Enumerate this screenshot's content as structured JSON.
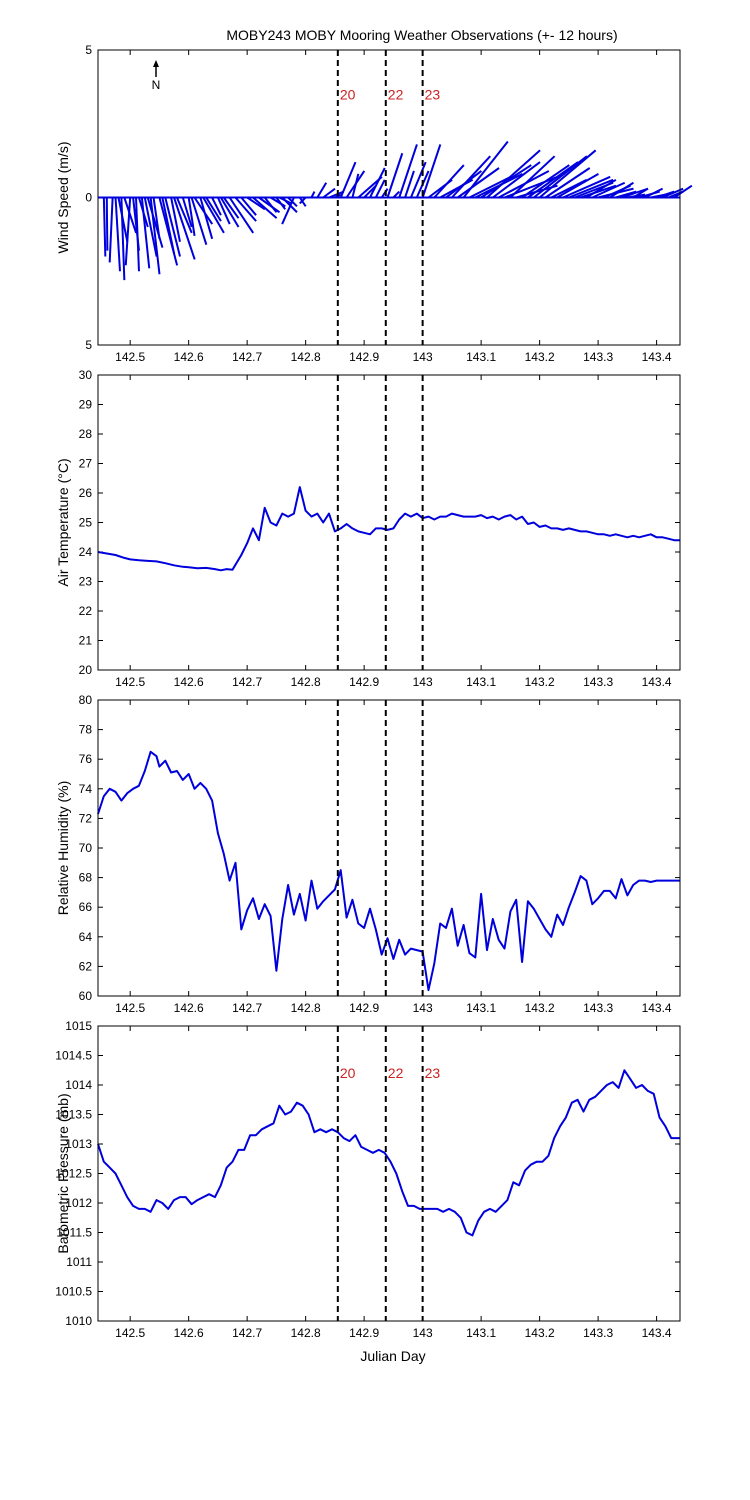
{
  "figure": {
    "title": "MOBY243 MOBY Mooring Weather Observations (+- 12 hours)",
    "xlabel": "Julian Day",
    "north_label": "N",
    "series_color": "#0000dd",
    "marker_color": "#cc2222"
  },
  "markers": [
    {
      "x": 142.855,
      "label": "20"
    },
    {
      "x": 142.937,
      "label": "22"
    },
    {
      "x": 143.0,
      "label": "23"
    }
  ],
  "x_ticks": [
    "142.5",
    "142.6",
    "142.7",
    "142.8",
    "142.9",
    "143",
    "143.1",
    "143.2",
    "143.3",
    "143.4"
  ],
  "chart_data": [
    {
      "type": "line",
      "name": "wind",
      "ylabel": "Wind Speed (m/s)",
      "xlim": [
        142.445,
        143.44
      ],
      "ylim": [
        -5,
        5
      ],
      "y_ticks": [
        "5",
        "0",
        "5"
      ],
      "show_marker_labels": true,
      "marker_label_y": 3.5,
      "x": [
        142.455,
        142.46,
        142.47,
        142.475,
        142.48,
        142.485,
        142.49,
        142.5,
        142.505,
        142.51,
        142.515,
        142.52,
        142.525,
        142.53,
        142.535,
        142.54,
        142.55,
        142.555,
        142.56,
        142.57,
        142.575,
        142.58,
        142.59,
        142.6,
        142.605,
        142.61,
        142.62,
        142.625,
        142.63,
        142.64,
        142.65,
        142.655,
        142.66,
        142.67,
        142.68,
        142.69,
        142.7,
        142.71,
        142.72,
        142.73,
        142.74,
        142.75,
        142.755,
        142.76,
        142.77,
        142.78,
        142.79,
        142.8,
        142.81,
        142.82,
        142.83,
        142.84,
        142.85,
        142.86,
        142.87,
        142.88,
        142.89,
        142.9,
        142.91,
        142.92,
        142.93,
        142.94,
        142.95,
        142.96,
        142.97,
        142.98,
        142.99,
        143.0,
        143.01,
        143.02,
        143.03,
        143.04,
        143.05,
        143.06,
        143.07,
        143.08,
        143.09,
        143.1,
        143.11,
        143.12,
        143.13,
        143.14,
        143.15,
        143.16,
        143.17,
        143.18,
        143.19,
        143.2,
        143.21,
        143.22,
        143.23,
        143.24,
        143.25,
        143.26,
        143.27,
        143.28,
        143.29,
        143.3,
        143.31,
        143.32,
        143.33,
        143.34,
        143.35,
        143.36,
        143.37,
        143.38,
        143.39,
        143.4,
        143.41,
        143.42,
        143.43
      ],
      "u": [
        0.05,
        0.02,
        -0.1,
        0.15,
        0.3,
        0.1,
        0.4,
        -0.15,
        0.2,
        0.1,
        0.3,
        0.25,
        0.4,
        0.5,
        0.3,
        0.2,
        0.6,
        0.4,
        0.5,
        0.3,
        0.7,
        0.5,
        0.3,
        0.2,
        0.5,
        0.6,
        0.4,
        0.7,
        0.5,
        0.3,
        0.4,
        0.6,
        0.5,
        0.8,
        0.7,
        0.5,
        0.6,
        0.8,
        0.7,
        0.4,
        0.5,
        0.3,
        0.4,
        0.5,
        0.3,
        -0.4,
        0.2,
        -0.2,
        0.1,
        0.3,
        0.4,
        0.5,
        0.2,
        0.5,
        0.6,
        0.2,
        0.8,
        0.4,
        0.5,
        0.3,
        0.2,
        0.5,
        0.2,
        0.6,
        0.3,
        0.5,
        0.4,
        0.6,
        0.8,
        1.0,
        1.1,
        1.2,
        1.3,
        1.4,
        1.5,
        1.4,
        1.6,
        1.7,
        1.8,
        1.6,
        1.7,
        1.8,
        1.5,
        1.4,
        1.6,
        1.7,
        1.8,
        1.9,
        1.5,
        1.2,
        1.4,
        1.6,
        1.5,
        1.3,
        1.2,
        1.0,
        1.1,
        1.2,
        0.9,
        0.8,
        0.7,
        0.9,
        0.6,
        0.5,
        0.7,
        0.6,
        0.5,
        0.6,
        0.7,
        0.5,
        0.6
      ],
      "v": [
        -2.0,
        -1.8,
        -2.2,
        -2.5,
        -1.5,
        -2.8,
        -1.2,
        -2.3,
        -1.8,
        -2.5,
        -1.0,
        -2.4,
        -2.0,
        -1.7,
        -2.6,
        -1.4,
        -2.3,
        -1.9,
        -2.0,
        -1.5,
        -2.1,
        -1.2,
        -1.0,
        -1.3,
        -1.6,
        -0.9,
        -1.4,
        -1.2,
        -0.8,
        -0.6,
        -0.9,
        -1.0,
        -0.7,
        -1.2,
        -0.8,
        -0.6,
        -0.4,
        -0.7,
        -0.5,
        -0.5,
        -0.3,
        -0.4,
        -0.2,
        -0.5,
        -0.3,
        -0.9,
        -0.3,
        -0.2,
        0.2,
        0.5,
        0.3,
        0.2,
        0.1,
        1.2,
        0.9,
        0.8,
        0.7,
        0.4,
        1.0,
        0.6,
        0.3,
        1.5,
        0.2,
        1.8,
        0.9,
        1.2,
        0.9,
        1.8,
        0.6,
        1.1,
        0.6,
        0.9,
        1.4,
        1.0,
        1.9,
        0.7,
        0.8,
        1.1,
        1.6,
        1.2,
        0.9,
        0.7,
        1.4,
        0.4,
        1.1,
        1.2,
        1.4,
        1.6,
        1.0,
        0.6,
        0.8,
        0.7,
        0.6,
        0.5,
        0.4,
        0.6,
        0.5,
        0.3,
        0.4,
        0.5,
        0.2,
        0.3,
        0.1,
        0.3,
        0.2,
        0.3,
        0.1,
        0.2,
        0.3,
        0.2,
        0.4
      ]
    },
    {
      "type": "line",
      "name": "air_temperature",
      "ylabel": "Air Temperature (°C)",
      "xlim": [
        142.445,
        143.44
      ],
      "ylim": [
        20,
        30
      ],
      "y_ticks": [
        "20",
        "21",
        "22",
        "23",
        "24",
        "25",
        "26",
        "27",
        "28",
        "29",
        "30"
      ],
      "show_marker_labels": false,
      "x": [
        142.445,
        142.46,
        142.475,
        142.49,
        142.5,
        142.515,
        142.53,
        142.545,
        142.56,
        142.575,
        142.59,
        142.6,
        142.615,
        142.63,
        142.645,
        142.655,
        142.665,
        142.675,
        142.69,
        142.7,
        142.71,
        142.72,
        142.73,
        142.74,
        142.75,
        142.76,
        142.77,
        142.78,
        142.79,
        142.8,
        142.81,
        142.82,
        142.83,
        142.84,
        142.85,
        142.86,
        142.87,
        142.88,
        142.89,
        142.9,
        142.91,
        142.92,
        142.93,
        142.94,
        142.95,
        142.96,
        142.97,
        142.98,
        142.99,
        143.0,
        143.01,
        143.02,
        143.03,
        143.04,
        143.05,
        143.06,
        143.07,
        143.08,
        143.09,
        143.1,
        143.11,
        143.12,
        143.13,
        143.14,
        143.15,
        143.16,
        143.17,
        143.18,
        143.19,
        143.2,
        143.21,
        143.22,
        143.23,
        143.24,
        143.25,
        143.26,
        143.27,
        143.28,
        143.29,
        143.3,
        143.31,
        143.32,
        143.33,
        143.34,
        143.35,
        143.36,
        143.37,
        143.38,
        143.39,
        143.4,
        143.41,
        143.42,
        143.43,
        143.44
      ],
      "y": [
        24.0,
        23.95,
        23.9,
        23.8,
        23.75,
        23.72,
        23.7,
        23.68,
        23.62,
        23.55,
        23.5,
        23.48,
        23.45,
        23.46,
        23.42,
        23.38,
        23.42,
        23.4,
        23.9,
        24.3,
        24.8,
        24.4,
        25.5,
        25.0,
        24.9,
        25.3,
        25.2,
        25.3,
        26.2,
        25.4,
        25.2,
        25.3,
        25.0,
        25.3,
        24.7,
        24.8,
        24.95,
        24.8,
        24.7,
        24.65,
        24.6,
        24.8,
        24.8,
        24.75,
        24.8,
        25.1,
        25.3,
        25.2,
        25.3,
        25.15,
        25.2,
        25.1,
        25.2,
        25.2,
        25.3,
        25.25,
        25.2,
        25.2,
        25.2,
        25.25,
        25.15,
        25.2,
        25.1,
        25.2,
        25.25,
        25.1,
        25.2,
        24.95,
        25.0,
        24.85,
        24.9,
        24.8,
        24.8,
        24.75,
        24.8,
        24.75,
        24.7,
        24.7,
        24.65,
        24.6,
        24.6,
        24.55,
        24.6,
        24.55,
        24.5,
        24.55,
        24.5,
        24.55,
        24.6,
        24.5,
        24.5,
        24.45,
        24.4,
        24.4
      ]
    },
    {
      "type": "line",
      "name": "relative_humidity",
      "ylabel": "Relative Humidity (%)",
      "xlim": [
        142.445,
        143.44
      ],
      "ylim": [
        60,
        80
      ],
      "y_ticks": [
        "60",
        "62",
        "64",
        "66",
        "68",
        "70",
        "72",
        "74",
        "76",
        "78",
        "80"
      ],
      "show_marker_labels": false,
      "x": [
        142.445,
        142.455,
        142.465,
        142.475,
        142.485,
        142.495,
        142.505,
        142.515,
        142.525,
        142.535,
        142.545,
        142.55,
        142.56,
        142.57,
        142.58,
        142.59,
        142.6,
        142.61,
        142.62,
        142.63,
        142.64,
        142.65,
        142.66,
        142.67,
        142.68,
        142.69,
        142.7,
        142.71,
        142.72,
        142.73,
        142.74,
        142.75,
        142.76,
        142.77,
        142.78,
        142.79,
        142.8,
        142.81,
        142.82,
        142.83,
        142.84,
        142.85,
        142.86,
        142.87,
        142.88,
        142.89,
        142.9,
        142.91,
        142.92,
        142.93,
        142.94,
        142.95,
        142.96,
        142.97,
        142.98,
        142.99,
        143.0,
        143.01,
        143.02,
        143.03,
        143.04,
        143.05,
        143.06,
        143.07,
        143.08,
        143.09,
        143.1,
        143.11,
        143.12,
        143.13,
        143.14,
        143.15,
        143.16,
        143.17,
        143.18,
        143.19,
        143.2,
        143.21,
        143.22,
        143.23,
        143.24,
        143.25,
        143.26,
        143.27,
        143.28,
        143.29,
        143.3,
        143.31,
        143.32,
        143.33,
        143.34,
        143.35,
        143.36,
        143.37,
        143.38,
        143.39,
        143.4,
        143.41,
        143.42,
        143.43,
        143.44
      ],
      "y": [
        72.3,
        73.5,
        74.0,
        73.8,
        73.2,
        73.7,
        74.0,
        74.2,
        75.2,
        76.5,
        76.2,
        75.5,
        75.9,
        75.1,
        75.2,
        74.6,
        75.0,
        74.0,
        74.4,
        74.0,
        73.2,
        71.0,
        69.6,
        67.8,
        69.0,
        64.5,
        65.8,
        66.6,
        65.2,
        66.2,
        65.4,
        61.7,
        65.2,
        67.5,
        65.5,
        66.9,
        65.1,
        67.8,
        65.9,
        66.4,
        66.8,
        67.2,
        68.5,
        65.3,
        66.5,
        64.9,
        64.6,
        65.9,
        64.5,
        62.8,
        63.9,
        62.5,
        63.8,
        62.8,
        63.2,
        63.1,
        63.0,
        60.4,
        62.2,
        64.9,
        64.6,
        65.9,
        63.4,
        64.8,
        62.9,
        62.6,
        66.9,
        63.1,
        65.2,
        63.8,
        63.2,
        65.7,
        66.5,
        62.3,
        66.4,
        65.9,
        65.2,
        64.5,
        64.0,
        65.5,
        64.8,
        66.0,
        67.0,
        68.1,
        67.8,
        66.2,
        66.6,
        67.1,
        67.1,
        66.6,
        67.9,
        66.8,
        67.5,
        67.8,
        67.8,
        67.7,
        67.8,
        67.8,
        67.8,
        67.8,
        67.8
      ]
    },
    {
      "type": "line",
      "name": "barometric_pressure",
      "ylabel": "Barometric Pressure (mb)",
      "xlim": [
        142.445,
        143.44
      ],
      "ylim": [
        1010,
        1015
      ],
      "y_ticks": [
        "1010",
        "1010.5",
        "1011",
        "1011.5",
        "1012",
        "1012.5",
        "1013",
        "1013.5",
        "1014",
        "1014.5",
        "1015"
      ],
      "show_marker_labels": true,
      "marker_label_y": 1014.2,
      "x": [
        142.445,
        142.455,
        142.465,
        142.475,
        142.485,
        142.495,
        142.505,
        142.515,
        142.525,
        142.535,
        142.545,
        142.555,
        142.565,
        142.575,
        142.585,
        142.595,
        142.605,
        142.615,
        142.625,
        142.635,
        142.645,
        142.655,
        142.665,
        142.675,
        142.685,
        142.695,
        142.705,
        142.715,
        142.725,
        142.735,
        142.745,
        142.755,
        142.765,
        142.775,
        142.785,
        142.795,
        142.805,
        142.815,
        142.825,
        142.835,
        142.845,
        142.855,
        142.865,
        142.875,
        142.885,
        142.895,
        142.905,
        142.915,
        142.925,
        142.935,
        142.945,
        142.955,
        142.965,
        142.975,
        142.985,
        142.995,
        143.005,
        143.015,
        143.025,
        143.035,
        143.045,
        143.055,
        143.065,
        143.075,
        143.085,
        143.095,
        143.105,
        143.115,
        143.125,
        143.135,
        143.145,
        143.155,
        143.165,
        143.175,
        143.185,
        143.195,
        143.205,
        143.215,
        143.225,
        143.235,
        143.245,
        143.255,
        143.265,
        143.275,
        143.285,
        143.295,
        143.305,
        143.315,
        143.325,
        143.335,
        143.345,
        143.355,
        143.365,
        143.375,
        143.385,
        143.395,
        143.405,
        143.415,
        143.425,
        143.435,
        143.44
      ],
      "y": [
        1013.0,
        1012.7,
        1012.6,
        1012.5,
        1012.3,
        1012.1,
        1011.95,
        1011.9,
        1011.9,
        1011.85,
        1012.05,
        1012.0,
        1011.9,
        1012.05,
        1012.1,
        1012.1,
        1011.98,
        1012.05,
        1012.1,
        1012.15,
        1012.1,
        1012.3,
        1012.6,
        1012.7,
        1012.9,
        1012.9,
        1013.15,
        1013.15,
        1013.25,
        1013.3,
        1013.35,
        1013.65,
        1013.5,
        1013.55,
        1013.7,
        1013.65,
        1013.5,
        1013.2,
        1013.25,
        1013.2,
        1013.25,
        1013.2,
        1013.1,
        1013.05,
        1013.15,
        1012.95,
        1012.9,
        1012.85,
        1012.9,
        1012.85,
        1012.7,
        1012.5,
        1012.2,
        1011.95,
        1011.95,
        1011.9,
        1011.9,
        1011.9,
        1011.9,
        1011.85,
        1011.9,
        1011.85,
        1011.75,
        1011.5,
        1011.45,
        1011.7,
        1011.85,
        1011.9,
        1011.85,
        1011.95,
        1012.05,
        1012.35,
        1012.3,
        1012.55,
        1012.65,
        1012.7,
        1012.7,
        1012.8,
        1013.1,
        1013.3,
        1013.45,
        1013.7,
        1013.75,
        1013.55,
        1013.75,
        1013.8,
        1013.9,
        1014.0,
        1014.05,
        1013.95,
        1014.25,
        1014.1,
        1013.95,
        1014.0,
        1013.9,
        1013.85,
        1013.45,
        1013.3,
        1013.1,
        1013.1,
        1013.1
      ]
    }
  ]
}
